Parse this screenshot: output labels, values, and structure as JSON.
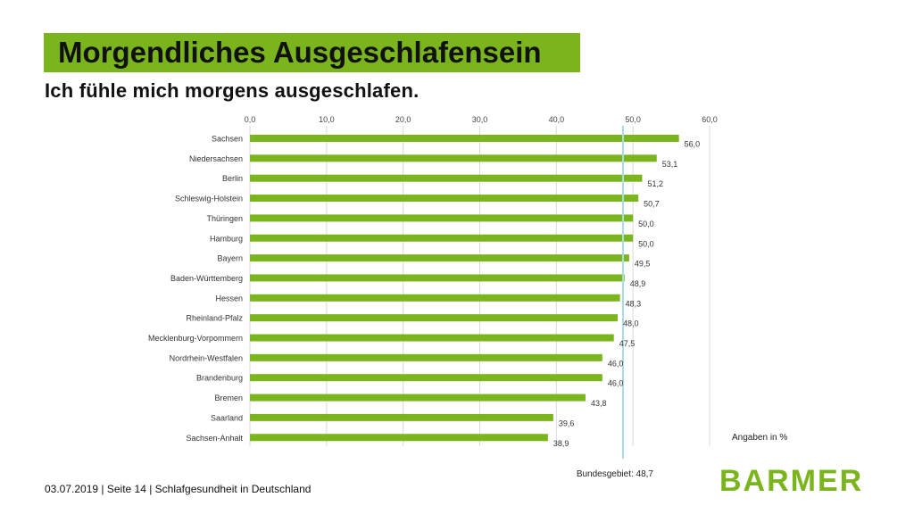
{
  "header": {
    "title": "Morgendliches Ausgeschlafensein",
    "subtitle": "Ich fühle mich morgens ausgeschlafen."
  },
  "colors": {
    "accent": "#7ab51d",
    "bar": "#7ab51d",
    "reference_line": "#a9dbe8",
    "grid": "#d9d9d9"
  },
  "chart_data": {
    "type": "bar",
    "orientation": "horizontal",
    "categories": [
      "Sachsen",
      "Niedersachsen",
      "Berlin",
      "Schleswig-Holstein",
      "Thüringen",
      "Hamburg",
      "Bayern",
      "Baden-Württemberg",
      "Hessen",
      "Rheinland-Pfalz",
      "Mecklenburg-Vorpommern",
      "Nordrhein-Westfalen",
      "Brandenburg",
      "Bremen",
      "Saarland",
      "Sachsen-Anhalt"
    ],
    "values": [
      56.0,
      53.1,
      51.2,
      50.7,
      50.0,
      50.0,
      49.5,
      48.9,
      48.3,
      48.0,
      47.5,
      46.0,
      46.0,
      43.8,
      39.6,
      38.9
    ],
    "value_labels": [
      "56,0",
      "53,1",
      "51,2",
      "50,7",
      "50,0",
      "50,0",
      "49,5",
      "48,9",
      "48,3",
      "48,0",
      "47,5",
      "46,0",
      "46,0",
      "43,8",
      "39,6",
      "38,9"
    ],
    "xlim": [
      0,
      60
    ],
    "x_ticks": [
      0,
      10,
      20,
      30,
      40,
      50,
      60
    ],
    "x_tick_labels": [
      "0,0",
      "10,0",
      "20,0",
      "30,0",
      "40,0",
      "50,0",
      "60,0"
    ],
    "axis_position": "top",
    "grid": true,
    "reference_line": {
      "value": 48.7,
      "label": "Bundesgebiet: 48,7"
    },
    "unit_note": "Angaben in %"
  },
  "footer": {
    "text": "03.07.2019 | Seite 14 | Schlafgesundheit in Deutschland"
  },
  "logo": {
    "text": "BARMER"
  }
}
